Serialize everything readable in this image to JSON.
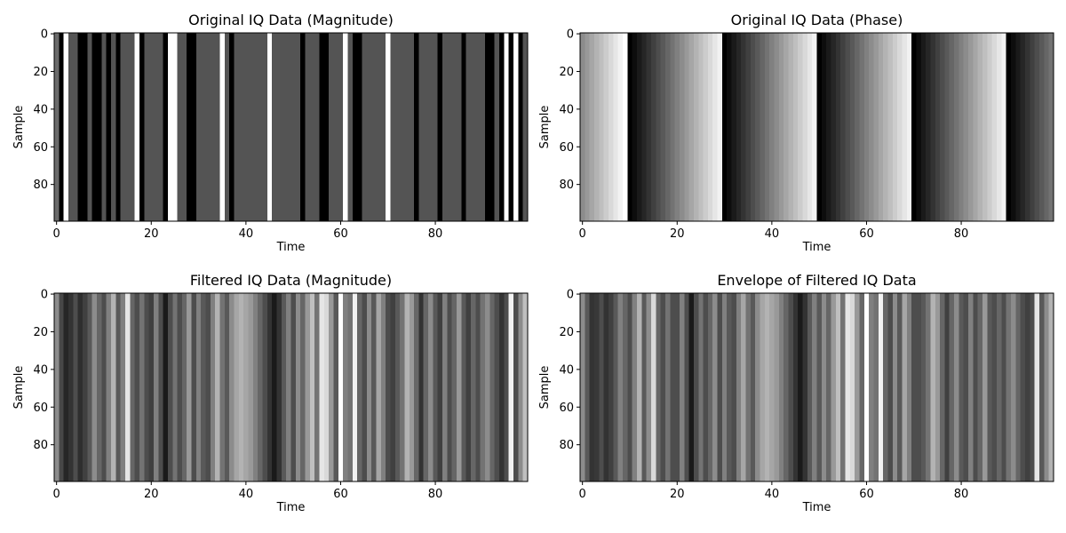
{
  "chart_data": [
    {
      "type": "heatmap",
      "title": "Original IQ Data (Magnitude)",
      "xlabel": "Time",
      "ylabel": "Sample",
      "xticks": [
        0,
        20,
        40,
        60,
        80
      ],
      "yticks": [
        0,
        20,
        40,
        60,
        80
      ],
      "xlim": [
        -0.5,
        99.5
      ],
      "ylim": [
        99.5,
        -0.5
      ],
      "colormap": "gray",
      "columns": [
        0.42,
        0.0,
        1.0,
        0.33,
        0.33,
        0.0,
        0.0,
        0.33,
        0.0,
        0.0,
        0.33,
        0.0,
        0.33,
        0.0,
        0.33,
        0.33,
        0.33,
        1.0,
        0.0,
        0.33,
        0.33,
        0.33,
        0.33,
        0.0,
        1.0,
        1.0,
        0.33,
        0.33,
        0.0,
        0.0,
        0.33,
        0.33,
        0.33,
        0.33,
        0.33,
        1.0,
        0.33,
        0.0,
        0.33,
        0.33,
        0.33,
        0.33,
        0.33,
        0.33,
        0.33,
        1.0,
        0.33,
        0.33,
        0.33,
        0.33,
        0.33,
        0.33,
        0.0,
        0.33,
        0.33,
        0.33,
        0.0,
        0.0,
        0.33,
        0.33,
        0.33,
        1.0,
        0.33,
        0.0,
        0.0,
        0.33,
        0.33,
        0.33,
        0.33,
        0.33,
        1.0,
        0.33,
        0.33,
        0.33,
        0.33,
        0.33,
        0.0,
        0.33,
        0.33,
        0.33,
        0.33,
        0.0,
        0.33,
        0.33,
        0.33,
        0.33,
        0.0,
        0.33,
        0.33,
        0.33,
        0.33,
        0.0,
        0.0,
        0.33,
        0.0,
        1.0,
        0.0,
        1.0,
        0.0,
        0.33
      ]
    },
    {
      "type": "heatmap",
      "title": "Original IQ Data (Phase)",
      "xlabel": "Time",
      "ylabel": "Sample",
      "xticks": [
        0,
        20,
        40,
        60,
        80
      ],
      "yticks": [
        0,
        20,
        40,
        60,
        80
      ],
      "xlim": [
        -0.5,
        99.5
      ],
      "ylim": [
        99.5,
        -0.5
      ],
      "colormap": "gray",
      "columns": [
        0.55,
        0.6,
        0.65,
        0.7,
        0.75,
        0.8,
        0.85,
        0.9,
        0.95,
        1.0,
        0.0,
        0.05,
        0.1,
        0.15,
        0.2,
        0.25,
        0.3,
        0.35,
        0.4,
        0.45,
        0.5,
        0.55,
        0.6,
        0.65,
        0.7,
        0.75,
        0.8,
        0.85,
        0.9,
        0.95,
        0.0,
        0.05,
        0.1,
        0.15,
        0.2,
        0.25,
        0.3,
        0.35,
        0.4,
        0.45,
        0.5,
        0.55,
        0.6,
        0.65,
        0.7,
        0.75,
        0.8,
        0.85,
        0.9,
        0.95,
        0.0,
        0.05,
        0.1,
        0.15,
        0.2,
        0.25,
        0.3,
        0.35,
        0.4,
        0.45,
        0.5,
        0.55,
        0.6,
        0.65,
        0.7,
        0.75,
        0.8,
        0.85,
        0.9,
        0.95,
        0.0,
        0.05,
        0.1,
        0.15,
        0.2,
        0.25,
        0.3,
        0.35,
        0.4,
        0.45,
        0.5,
        0.55,
        0.6,
        0.65,
        0.7,
        0.75,
        0.8,
        0.85,
        0.9,
        0.95,
        0.0,
        0.05,
        0.1,
        0.15,
        0.2,
        0.25,
        0.3,
        0.35,
        0.4,
        0.45
      ]
    },
    {
      "type": "heatmap",
      "title": "Filtered IQ Data (Magnitude)",
      "xlabel": "Time",
      "ylabel": "Sample",
      "xticks": [
        0,
        20,
        40,
        60,
        80
      ],
      "yticks": [
        0,
        20,
        40,
        60,
        80
      ],
      "xlim": [
        -0.5,
        99.5
      ],
      "ylim": [
        99.5,
        -0.5
      ],
      "colormap": "gray",
      "columns": [
        0.55,
        0.28,
        0.15,
        0.2,
        0.3,
        0.18,
        0.25,
        0.35,
        0.55,
        0.4,
        0.3,
        0.5,
        0.7,
        0.35,
        0.5,
        0.9,
        0.4,
        0.3,
        0.45,
        0.3,
        0.25,
        0.5,
        0.3,
        0.1,
        0.3,
        0.45,
        0.3,
        0.4,
        0.6,
        0.3,
        0.5,
        0.35,
        0.3,
        0.5,
        0.7,
        0.45,
        0.35,
        0.55,
        0.65,
        0.7,
        0.65,
        0.6,
        0.5,
        0.4,
        0.3,
        0.2,
        0.1,
        0.2,
        0.35,
        0.5,
        0.3,
        0.55,
        0.4,
        0.6,
        0.75,
        0.45,
        0.9,
        0.85,
        0.6,
        0.35,
        1.0,
        0.5,
        0.45,
        0.95,
        0.4,
        0.3,
        0.55,
        0.35,
        0.65,
        0.5,
        0.3,
        0.25,
        0.35,
        0.45,
        0.7,
        0.6,
        0.4,
        0.2,
        0.4,
        0.55,
        0.35,
        0.25,
        0.5,
        0.3,
        0.4,
        0.6,
        0.35,
        0.25,
        0.4,
        0.3,
        0.45,
        0.55,
        0.4,
        0.3,
        0.2,
        0.3,
        0.95,
        0.3,
        0.55,
        0.75
      ]
    },
    {
      "type": "heatmap",
      "title": "Envelope of Filtered IQ Data",
      "xlabel": "Time",
      "ylabel": "Sample",
      "xticks": [
        0,
        20,
        40,
        60,
        80
      ],
      "yticks": [
        0,
        20,
        40,
        60,
        80
      ],
      "xlim": [
        -0.5,
        99.5
      ],
      "ylim": [
        99.5,
        -0.5
      ],
      "colormap": "gray",
      "columns": [
        0.55,
        0.35,
        0.2,
        0.22,
        0.3,
        0.2,
        0.25,
        0.35,
        0.5,
        0.4,
        0.3,
        0.5,
        0.7,
        0.35,
        0.55,
        0.85,
        0.4,
        0.3,
        0.45,
        0.3,
        0.3,
        0.5,
        0.3,
        0.1,
        0.3,
        0.45,
        0.3,
        0.4,
        0.55,
        0.3,
        0.5,
        0.35,
        0.3,
        0.5,
        0.65,
        0.45,
        0.35,
        0.55,
        0.65,
        0.7,
        0.65,
        0.6,
        0.5,
        0.4,
        0.3,
        0.2,
        0.1,
        0.2,
        0.35,
        0.5,
        0.35,
        0.55,
        0.4,
        0.6,
        0.75,
        0.45,
        0.9,
        0.85,
        0.6,
        0.4,
        1.0,
        0.5,
        0.45,
        0.95,
        0.4,
        0.3,
        0.55,
        0.35,
        0.65,
        0.5,
        0.3,
        0.3,
        0.35,
        0.45,
        0.7,
        0.6,
        0.4,
        0.25,
        0.4,
        0.55,
        0.35,
        0.3,
        0.5,
        0.3,
        0.4,
        0.6,
        0.35,
        0.3,
        0.4,
        0.3,
        0.45,
        0.55,
        0.4,
        0.3,
        0.25,
        0.3,
        0.9,
        0.35,
        0.55,
        0.7
      ]
    }
  ]
}
